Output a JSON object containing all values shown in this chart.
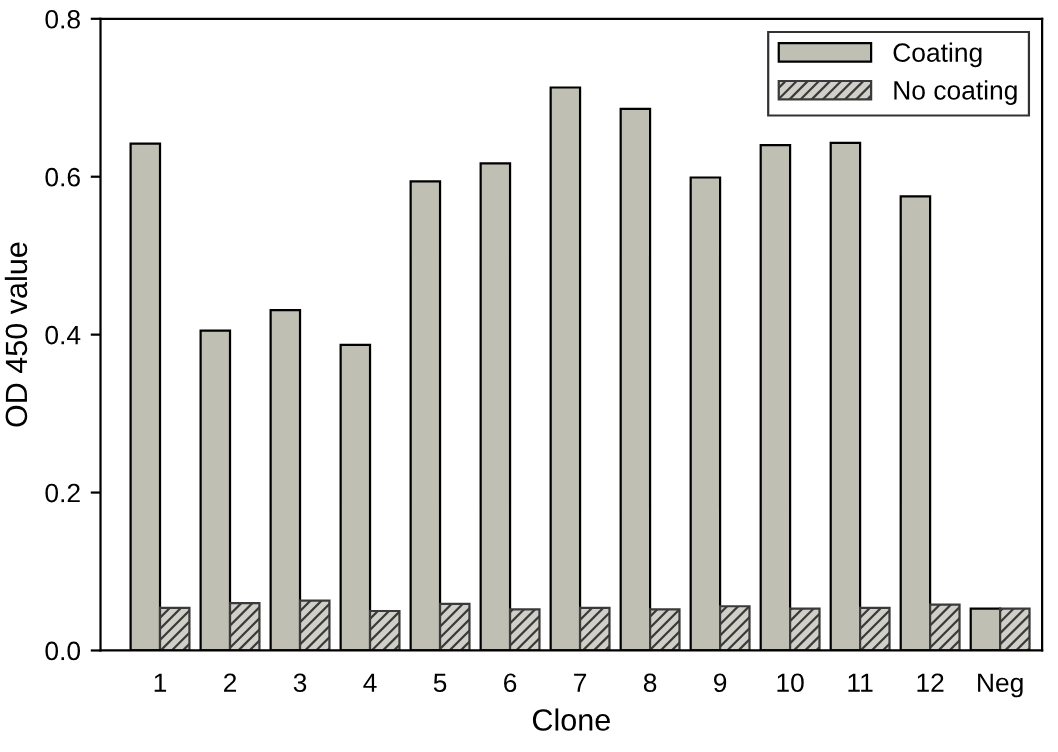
{
  "chart_data": {
    "type": "bar",
    "xlabel": "Clone",
    "ylabel": "OD 450 value",
    "categories": [
      "1",
      "2",
      "3",
      "4",
      "5",
      "6",
      "7",
      "8",
      "9",
      "10",
      "11",
      "12",
      "Neg"
    ],
    "series": [
      {
        "name": "Coating",
        "color": "#bfbfb3",
        "values": [
          0.642,
          0.405,
          0.431,
          0.387,
          0.594,
          0.617,
          0.713,
          0.686,
          0.599,
          0.64,
          0.643,
          0.575,
          0.053
        ]
      },
      {
        "name": "No coating",
        "color": "#3a3a3a",
        "values": [
          0.054,
          0.06,
          0.063,
          0.05,
          0.059,
          0.052,
          0.054,
          0.052,
          0.056,
          0.053,
          0.054,
          0.058,
          0.053
        ]
      }
    ],
    "ylim": [
      0,
      0.8
    ],
    "yticks": [
      {
        "value": 0,
        "label": "0.0"
      },
      {
        "value": 0.2,
        "label": "0.2"
      },
      {
        "value": 0.4,
        "label": "0.4"
      },
      {
        "value": 0.6,
        "label": "0.6"
      },
      {
        "value": 0.8,
        "label": "0.8"
      }
    ],
    "grid": false,
    "legend": "top right"
  }
}
